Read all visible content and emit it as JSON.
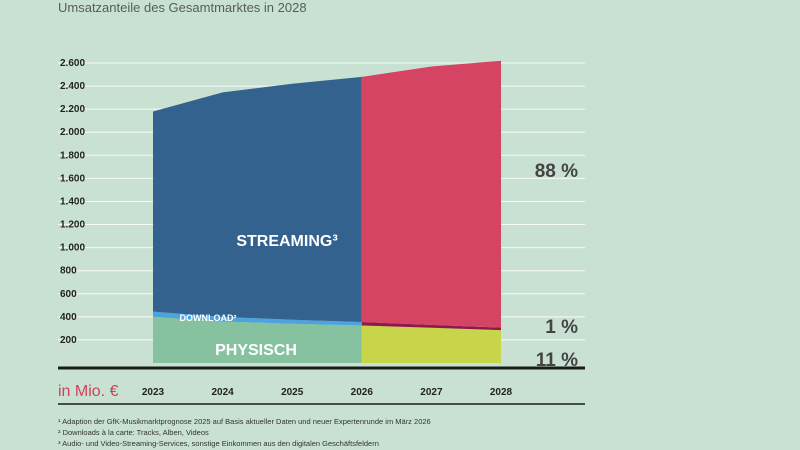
{
  "subtitle": "Umsatzanteile des Gesamtmarktes in 2028",
  "chart_data": {
    "type": "area",
    "unit_label": "in Mio. €",
    "x": [
      "2023",
      "2024",
      "2025",
      "2026",
      "2027",
      "2028"
    ],
    "y_ticks": [
      "200",
      "400",
      "600",
      "800",
      "1.000",
      "1.200",
      "1.400",
      "1.600",
      "1.800",
      "2.000",
      "2.200",
      "2.400",
      "2.600"
    ],
    "ylim": [
      0,
      2600
    ],
    "series": [
      {
        "name": "PHYSISCH",
        "values": [
          400,
          360,
          340,
          325,
          305,
          285
        ]
      },
      {
        "name": "DOWNLOAD²",
        "values": [
          45,
          40,
          35,
          30,
          25,
          22
        ]
      },
      {
        "name": "STREAMING³",
        "values": [
          1735,
          1945,
          2045,
          2125,
          2240,
          2313
        ]
      }
    ],
    "colors": {
      "historic": {
        "physisch": "#86c2a0",
        "download": "#4da3de",
        "streaming": "#34628f"
      },
      "forecast": {
        "physisch": "#c8d54a",
        "download": "#8e1a4c",
        "streaming": "#d64464"
      }
    },
    "shares_2028": [
      {
        "label": "88 %",
        "series": "streaming"
      },
      {
        "label": "1 %",
        "series": "download"
      },
      {
        "label": "11 %",
        "series": "physisch"
      }
    ]
  },
  "footnotes": [
    "¹ Adaption der GfK-Musikmarktprognose 2025 auf Basis aktueller Daten und neuer Expertenrunde im März 2026",
    "² Downloads à la carte: Tracks, Alben, Videos",
    "³ Audio- und Video-Streaming-Services, sonstige Einkommen aus den digitalen Geschäftsfeldern"
  ]
}
